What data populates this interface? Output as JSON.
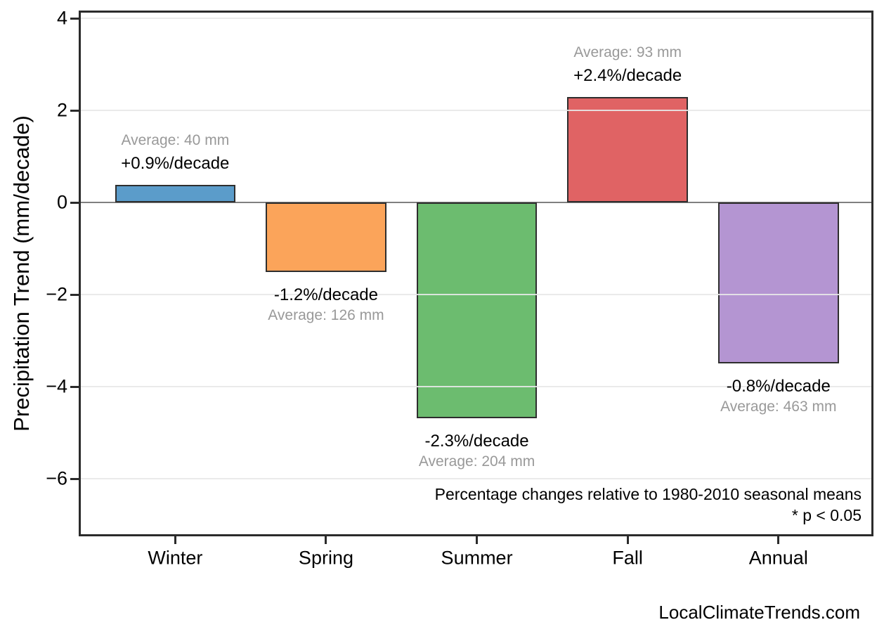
{
  "watermark": "LocalClimateTrends.com",
  "colors": {
    "background": "#FFFFFF",
    "spine": "#2B2B2B",
    "grid_line": "rgba(232,232,232,0.9)",
    "zero_line": "#808080",
    "bar_edge": "#2E2E2E",
    "percent_text": "#000000",
    "average_text": "#999999"
  },
  "chart_data": {
    "type": "bar",
    "title": "",
    "categories": [
      "Winter",
      "Spring",
      "Summer",
      "Fall",
      "Annual"
    ],
    "values": [
      0.38,
      -1.51,
      -4.69,
      2.29,
      -3.5
    ],
    "units": "mm/decade",
    "bar_colors": [
      "#5B9CCA",
      "#FBA45A",
      "#6CBC6F",
      "#E06364",
      "#B495D2"
    ],
    "bar_labels": [
      {
        "percent": "+0.9%/decade",
        "average": "Average: 40 mm"
      },
      {
        "percent": "-1.2%/decade",
        "average": "Average: 126 mm"
      },
      {
        "percent": "-2.3%/decade",
        "average": "Average: 204 mm"
      },
      {
        "percent": "+2.4%/decade",
        "average": "Average: 93 mm"
      },
      {
        "percent": "-0.8%/decade",
        "average": "Average: 463 mm"
      }
    ],
    "ylabel": "Precipitation Trend (mm/decade)",
    "xlabel": "",
    "yticks": [
      4,
      2,
      0,
      -2,
      -4,
      -6
    ],
    "ytick_labels": [
      "4",
      "2",
      "0",
      "−2",
      "−4",
      "−6"
    ],
    "ylim": [
      -7.25,
      4.17
    ],
    "xlim": [
      -0.64,
      4.63
    ],
    "bar_width": 0.8,
    "grid": true,
    "zero_line": true,
    "legend": "none",
    "notes": [
      "Percentage changes relative to 1980-2010 seasonal means",
      "* p < 0.05"
    ]
  }
}
